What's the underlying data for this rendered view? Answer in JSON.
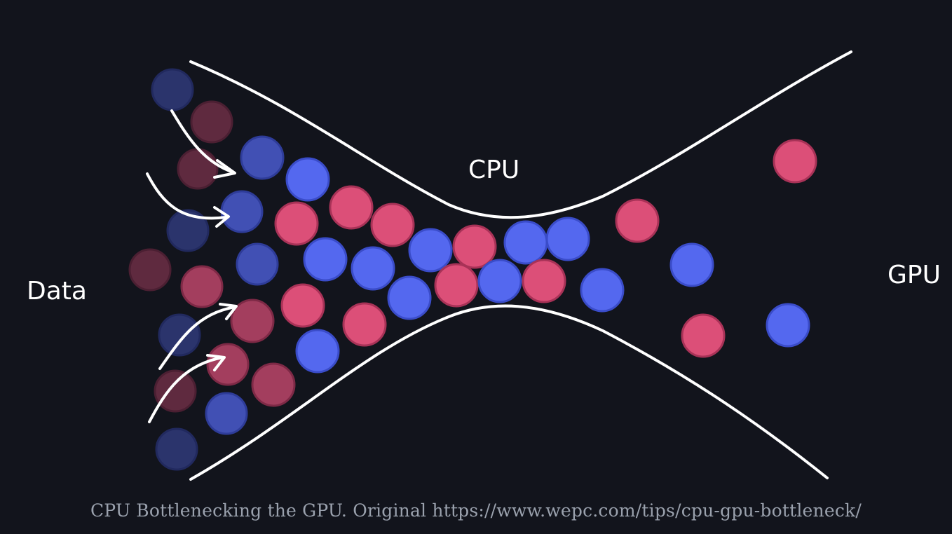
{
  "labels": {
    "data": "Data",
    "cpu": "CPU",
    "gpu": "GPU"
  },
  "caption": "CPU Bottlenecking the GPU. Original https://www.wepc.com/tips/cpu-gpu-bottleneck/",
  "colors": {
    "background": "#12141c",
    "blue_particle": "#5468ef",
    "blue_stroke": "#3a4cc9",
    "pink_particle": "#dc4f78",
    "pink_stroke": "#a83257",
    "line": "#ffffff",
    "caption": "#9aa1ad"
  }
}
